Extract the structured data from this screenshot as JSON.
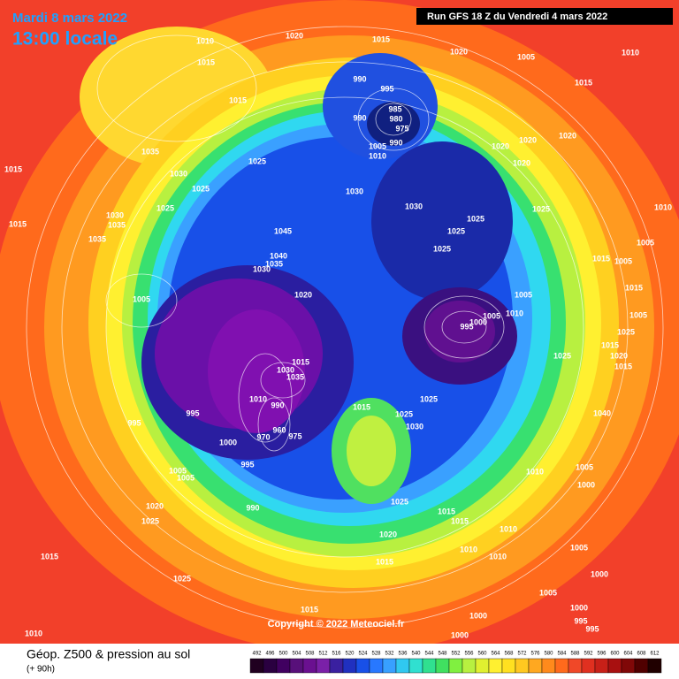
{
  "header": {
    "date": "Mardi 8 mars 2022",
    "time": "13:00 locale",
    "run": "Run GFS 18 Z du Vendredi 4 mars 2022"
  },
  "copyright": "Copyright © 2022 Meteociel.fr",
  "legend": {
    "title": "Géop. Z500 & pression au sol",
    "subtitle": "(+ 90h)",
    "scale": [
      492,
      496,
      500,
      504,
      508,
      512,
      516,
      520,
      524,
      528,
      532,
      536,
      540,
      544,
      548,
      552,
      556,
      560,
      564,
      568,
      572,
      576,
      580,
      584,
      588,
      592,
      596,
      600,
      604,
      608,
      612
    ]
  },
  "isobar_labels": [
    "1010",
    "1020",
    "1015",
    "1020",
    "1005",
    "1010",
    "1015",
    "990",
    "995",
    "1015",
    "1015",
    "985",
    "980",
    "990",
    "975",
    "990",
    "1005",
    "1010",
    "1020",
    "1020",
    "1020",
    "1035",
    "1025",
    "1020",
    "1015",
    "1030",
    "1025",
    "1030",
    "1030",
    "1025",
    "1025",
    "1025",
    "1030",
    "1035",
    "1015",
    "1045",
    "1025",
    "1035",
    "1010",
    "1005",
    "1025",
    "1040",
    "1035",
    "1030",
    "1015",
    "1005",
    "1020",
    "1005",
    "1005",
    "1015",
    "1005",
    "1010",
    "1005",
    "1000",
    "995",
    "1025",
    "1015",
    "1020",
    "1025",
    "1015",
    "1035",
    "1030",
    "1015",
    "1025",
    "1010",
    "990",
    "1015",
    "1025",
    "1040",
    "995",
    "995",
    "1030",
    "960",
    "970",
    "975",
    "1000",
    "995",
    "1005",
    "1010",
    "1005",
    "1005",
    "1000",
    "1025",
    "990",
    "1020",
    "1015",
    "1015",
    "1025",
    "1010",
    "1020",
    "1010",
    "1010",
    "1005",
    "1015",
    "1015",
    "1025",
    "1000",
    "1005",
    "1000",
    "1015",
    "1000",
    "995",
    "995",
    "1010",
    "1000"
  ]
}
